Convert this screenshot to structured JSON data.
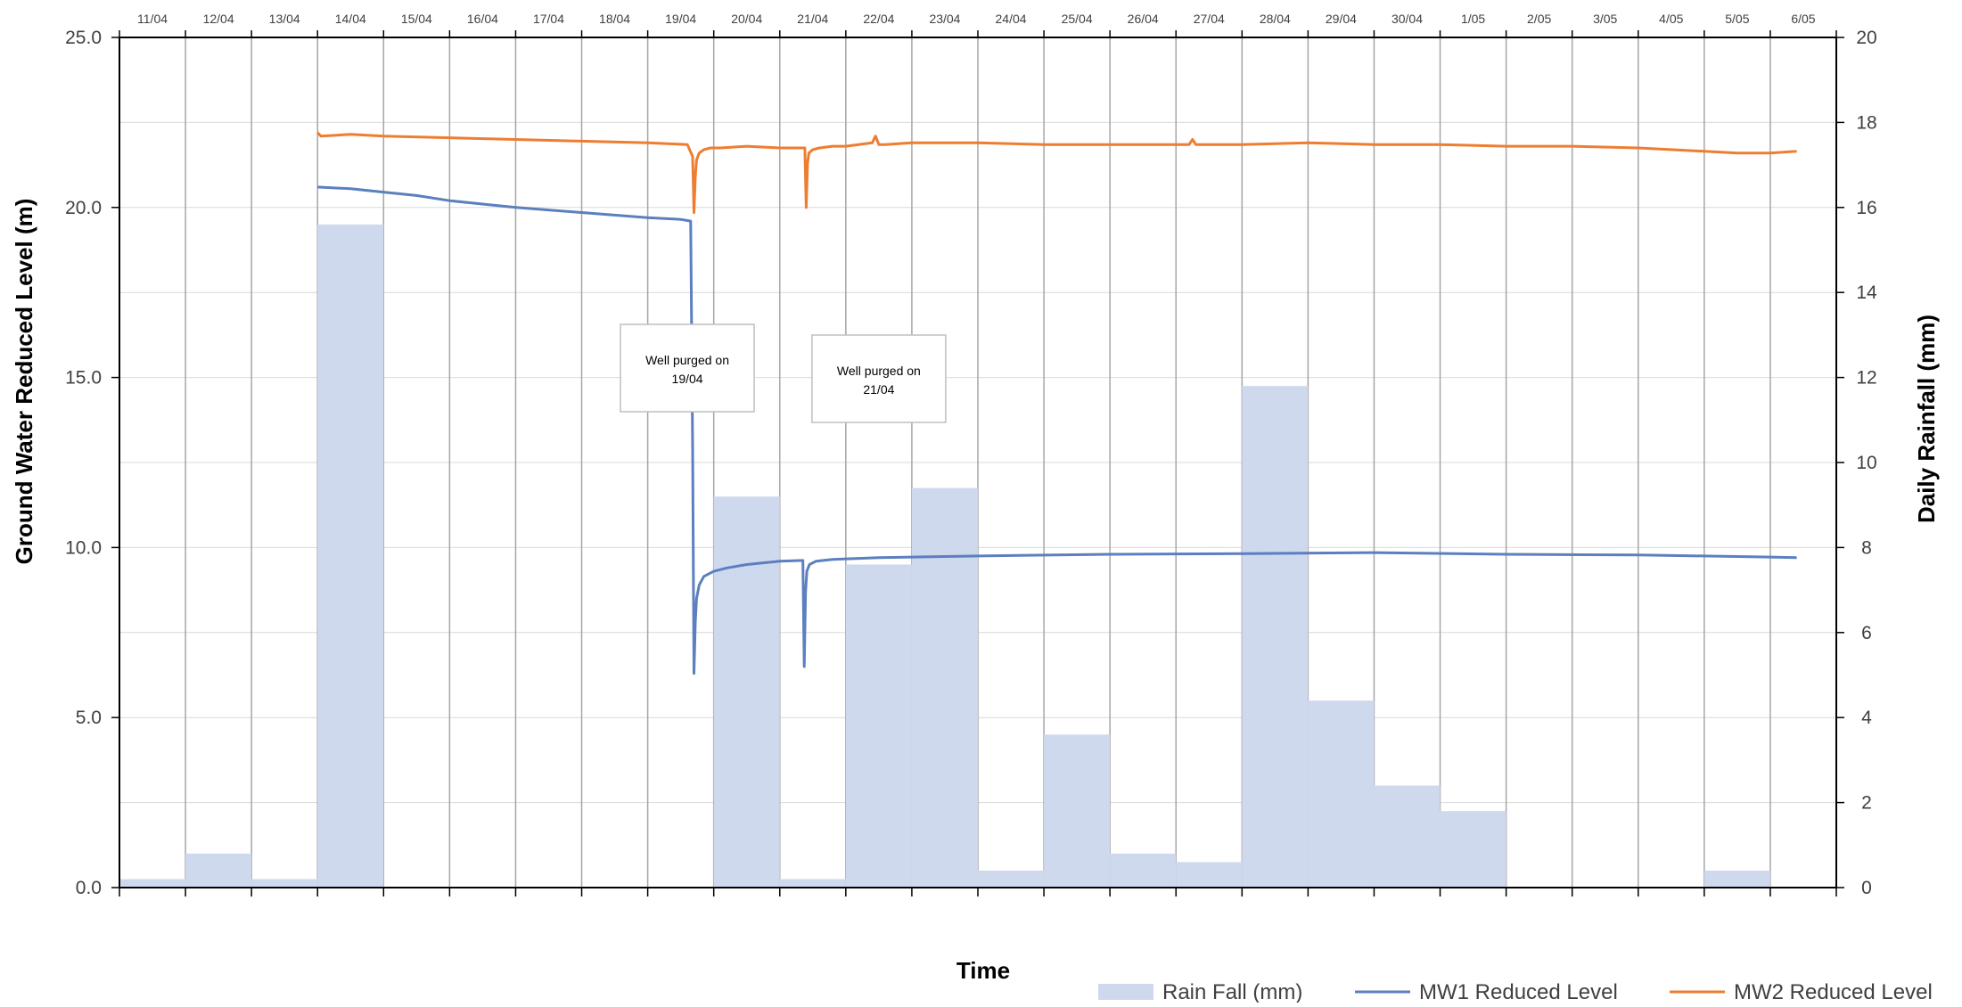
{
  "chart_data": {
    "type": "bar",
    "title": "",
    "xlabel": "Time",
    "ylabel": "Ground Water Reduced Level  (m)",
    "y2label": "Daily Rainfall (mm)",
    "ylim": [
      0,
      25
    ],
    "y2lim": [
      0,
      20
    ],
    "y_ticks": [
      "0.0",
      "5.0",
      "10.0",
      "15.0",
      "20.0",
      "25.0"
    ],
    "y2_ticks": [
      "0",
      "2",
      "4",
      "6",
      "8",
      "10",
      "12",
      "14",
      "16",
      "18",
      "20"
    ],
    "grid": true,
    "legend_position": "bottom-right",
    "categories": [
      "11/04",
      "12/04",
      "13/04",
      "14/04",
      "15/04",
      "16/04",
      "17/04",
      "18/04",
      "19/04",
      "20/04",
      "21/04",
      "22/04",
      "23/04",
      "24/04",
      "25/04",
      "26/04",
      "27/04",
      "28/04",
      "29/04",
      "30/04",
      "1/05",
      "2/05",
      "3/05",
      "4/05",
      "5/05",
      "6/05"
    ],
    "series": [
      {
        "name": "Rain Fall (mm)",
        "type": "bar",
        "axis": "right",
        "color": "#cfd9ee",
        "values": [
          0.2,
          0.8,
          0.2,
          15.6,
          0,
          0,
          0,
          0,
          0,
          9.2,
          0.2,
          7.6,
          9.4,
          0.4,
          3.6,
          0.8,
          0.6,
          11.8,
          4.4,
          2.4,
          1.8,
          0,
          0,
          0,
          0.4,
          0
        ]
      },
      {
        "name": "MW1 Reduced Level",
        "type": "line",
        "axis": "left",
        "color": "#5b7fbf",
        "x": [
          3.0,
          3.5,
          4.0,
          4.5,
          5.0,
          5.5,
          6.0,
          7.0,
          8.0,
          8.5,
          8.65,
          8.68,
          8.7,
          8.72,
          8.74,
          8.78,
          8.85,
          9.0,
          9.2,
          9.5,
          10.0,
          10.35,
          10.37,
          10.39,
          10.41,
          10.45,
          10.55,
          10.8,
          11.5,
          12.0,
          13.0,
          15.0,
          17.0,
          19.0,
          21.0,
          23.0,
          24.0,
          25.0,
          25.4
        ],
        "y": [
          20.6,
          20.55,
          20.45,
          20.35,
          20.2,
          20.1,
          20.0,
          19.85,
          19.7,
          19.65,
          19.6,
          13.0,
          6.3,
          7.8,
          8.5,
          8.9,
          9.15,
          9.3,
          9.4,
          9.5,
          9.6,
          9.62,
          6.5,
          8.7,
          9.3,
          9.5,
          9.6,
          9.65,
          9.7,
          9.72,
          9.75,
          9.8,
          9.82,
          9.85,
          9.8,
          9.78,
          9.75,
          9.72,
          9.7
        ]
      },
      {
        "name": "MW2 Reduced Level",
        "type": "line",
        "axis": "left",
        "color": "#ed7d31",
        "x": [
          3.0,
          3.05,
          3.5,
          4.0,
          5.0,
          6.0,
          7.0,
          8.0,
          8.6,
          8.68,
          8.7,
          8.72,
          8.74,
          8.78,
          8.85,
          8.95,
          9.1,
          9.5,
          10.0,
          10.38,
          10.4,
          10.42,
          10.44,
          10.5,
          10.6,
          10.8,
          11.0,
          11.4,
          11.45,
          11.5,
          11.6,
          12.0,
          13.0,
          14.0,
          15.0,
          16.0,
          16.2,
          16.25,
          16.3,
          17.0,
          18.0,
          19.0,
          20.0,
          21.0,
          22.0,
          23.0,
          24.0,
          24.5,
          25.0,
          25.4
        ],
        "y": [
          22.2,
          22.1,
          22.15,
          22.1,
          22.05,
          22.0,
          21.95,
          21.9,
          21.85,
          21.5,
          19.85,
          20.9,
          21.4,
          21.6,
          21.7,
          21.75,
          21.75,
          21.8,
          21.75,
          21.75,
          20.0,
          21.3,
          21.6,
          21.7,
          21.75,
          21.8,
          21.8,
          21.9,
          22.1,
          21.85,
          21.85,
          21.9,
          21.9,
          21.85,
          21.85,
          21.85,
          21.85,
          22.0,
          21.85,
          21.85,
          21.9,
          21.85,
          21.85,
          21.8,
          21.8,
          21.75,
          21.65,
          21.6,
          21.6,
          21.65
        ]
      }
    ],
    "annotations": [
      {
        "text": [
          "Well purged on",
          "19/04"
        ],
        "category": 8.6
      },
      {
        "text": [
          "Well purged on",
          "21/04"
        ],
        "category": 11.5
      }
    ]
  }
}
